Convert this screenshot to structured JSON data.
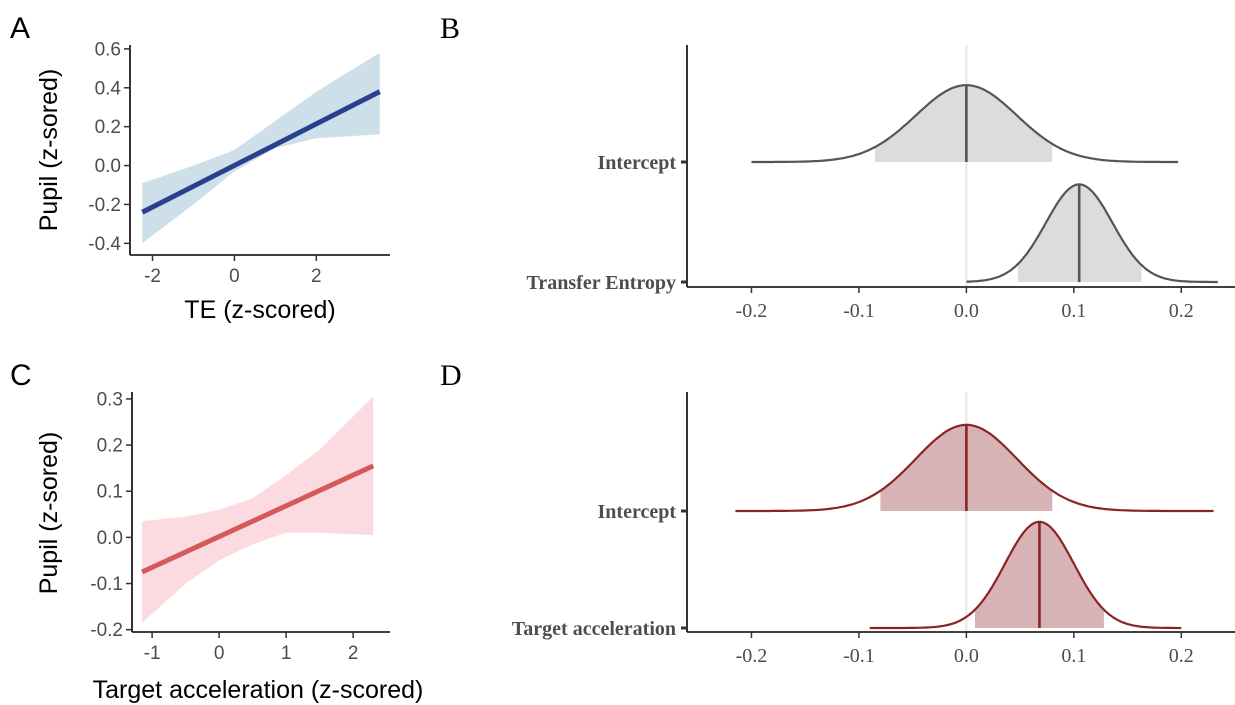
{
  "panels": {
    "A": {
      "letter": "A"
    },
    "B": {
      "letter": "B"
    },
    "C": {
      "letter": "C"
    },
    "D": {
      "letter": "D"
    }
  },
  "colors": {
    "blue_line": "#2b3f8f",
    "blue_band": "#cde0ea",
    "red_line": "#d45a5a",
    "red_band": "#fbdbe0",
    "grey_line": "#555555",
    "grey_fill": "#dcdcdc",
    "darkred_line": "#8b2525",
    "darkred_fill": "#d8b3b6",
    "zero_line": "#e6e6e6"
  },
  "chart_data": [
    {
      "id": "A",
      "type": "line",
      "xlabel": "TE (z-scored)",
      "ylabel": "Pupil (z-sored)",
      "xlim": [
        -2.55,
        3.8
      ],
      "ylim": [
        -0.46,
        0.62
      ],
      "xticks": [
        -2,
        0,
        2
      ],
      "xtick_labels": [
        "-2",
        "0",
        "2"
      ],
      "yticks": [
        -0.4,
        -0.2,
        0.0,
        0.2,
        0.4,
        0.6
      ],
      "ytick_labels": [
        "-0.4",
        "-0.2",
        "0.0",
        "0.2",
        "0.4",
        "0.6"
      ],
      "line": {
        "x": [
          -2.25,
          3.55
        ],
        "y": [
          -0.24,
          0.38
        ]
      },
      "band": {
        "x": [
          -2.25,
          -1.0,
          0.0,
          1.0,
          2.0,
          3.55
        ],
        "lower": [
          -0.4,
          -0.2,
          -0.03,
          0.09,
          0.14,
          0.16
        ],
        "upper": [
          -0.09,
          0.0,
          0.08,
          0.23,
          0.38,
          0.58
        ]
      }
    },
    {
      "id": "B",
      "type": "area",
      "ylabels": [
        "Intercept",
        "Transfer Entropy"
      ],
      "xlim": [
        -0.26,
        0.25
      ],
      "xticks": [
        -0.2,
        -0.1,
        0.0,
        0.1,
        0.2
      ],
      "xtick_labels": [
        "-0.2",
        "-0.1",
        "0.0",
        "0.1",
        "0.2"
      ],
      "distributions": [
        {
          "name": "Intercept",
          "range": [
            -0.2,
            0.197
          ],
          "mean": 0.0,
          "sd": 0.047,
          "ci": [
            -0.085,
            0.08
          ],
          "peak_ratio": 0.63
        },
        {
          "name": "Transfer Entropy",
          "range": [
            0.0,
            0.234
          ],
          "mean": 0.105,
          "sd": 0.031,
          "ci": [
            0.048,
            0.163
          ],
          "peak_ratio": 0.8
        }
      ]
    },
    {
      "id": "C",
      "type": "line",
      "xlabel": "Target acceleration (z-scored)",
      "ylabel": "Pupil (z-sored)",
      "xlim": [
        -1.3,
        2.55
      ],
      "ylim": [
        -0.205,
        0.315
      ],
      "xticks": [
        -1,
        0,
        1,
        2
      ],
      "xtick_labels": [
        "-1",
        "0",
        "1",
        "2"
      ],
      "yticks": [
        -0.2,
        -0.1,
        0.0,
        0.1,
        0.2,
        0.3
      ],
      "ytick_labels": [
        "-0.2",
        "-0.1",
        "0.0",
        "0.1",
        "0.2",
        "0.3"
      ],
      "line": {
        "x": [
          -1.15,
          2.3
        ],
        "y": [
          -0.075,
          0.155
        ]
      },
      "band": {
        "x": [
          -1.15,
          -0.5,
          0.0,
          0.5,
          1.0,
          1.5,
          2.3
        ],
        "lower": [
          -0.185,
          -0.1,
          -0.05,
          -0.015,
          0.01,
          0.01,
          0.005
        ],
        "upper": [
          0.035,
          0.045,
          0.06,
          0.085,
          0.135,
          0.19,
          0.305
        ]
      }
    },
    {
      "id": "D",
      "type": "area",
      "ylabels": [
        "Intercept",
        "Target acceleration"
      ],
      "xlim": [
        -0.26,
        0.25
      ],
      "xticks": [
        -0.2,
        -0.1,
        0.0,
        0.1,
        0.2
      ],
      "xtick_labels": [
        "-0.2",
        "-0.1",
        "0.0",
        "0.1",
        "0.2"
      ],
      "distributions": [
        {
          "name": "Intercept",
          "range": [
            -0.215,
            0.23
          ],
          "mean": 0.0,
          "sd": 0.047,
          "ci": [
            -0.08,
            0.08
          ],
          "peak_ratio": 0.73
        },
        {
          "name": "Target acceleration",
          "range": [
            -0.09,
            0.2
          ],
          "mean": 0.068,
          "sd": 0.032,
          "ci": [
            0.008,
            0.128
          ],
          "peak_ratio": 0.9
        }
      ]
    }
  ]
}
